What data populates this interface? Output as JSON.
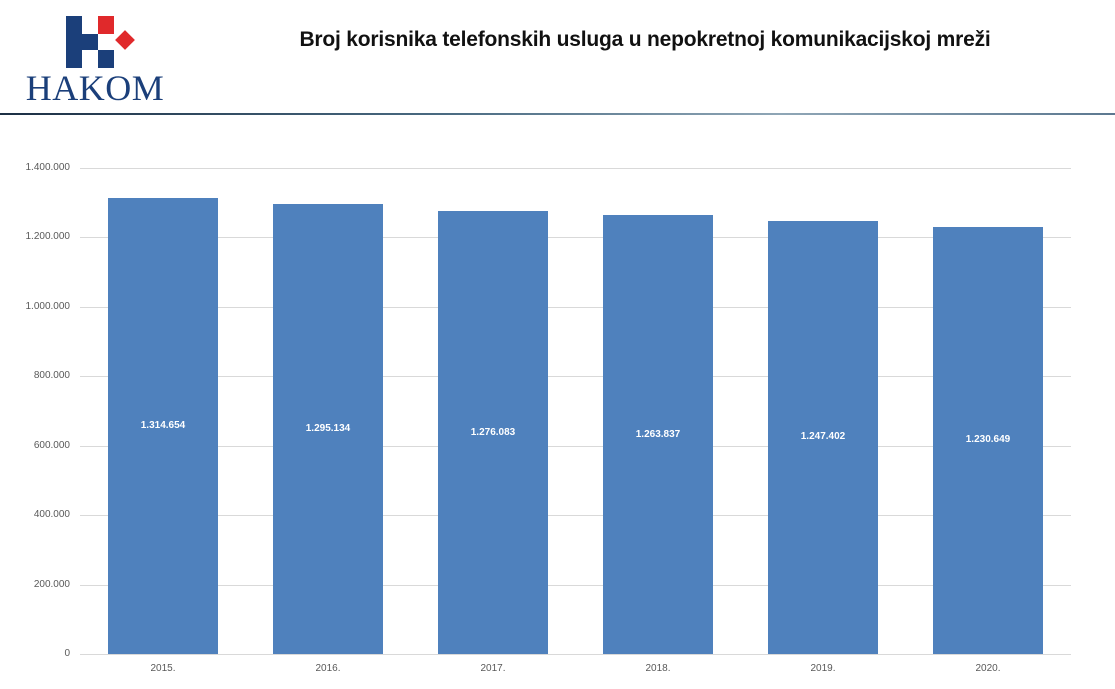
{
  "header": {
    "logo_text": "HAKOM",
    "title": "Broj korisnika telefonskih usluga u nepokretnoj komunikacijskoj mreži"
  },
  "colors": {
    "bar": "#4f81bd",
    "logo_blue": "#1b3f7a",
    "logo_red": "#e0292b",
    "grid": "#d9d9d9"
  },
  "chart_data": {
    "type": "bar",
    "title": "Broj korisnika telefonskih usluga u nepokretnoj komunikacijskoj mreži",
    "xlabel": "",
    "ylabel": "",
    "categories": [
      "2015.",
      "2016.",
      "2017.",
      "2018.",
      "2019.",
      "2020."
    ],
    "values": [
      1314654,
      1295134,
      1276083,
      1263837,
      1247402,
      1230649
    ],
    "value_labels": [
      "1.314.654",
      "1.295.134",
      "1.276.083",
      "1.263.837",
      "1.247.402",
      "1.230.649"
    ],
    "ylim": [
      0,
      1400000
    ],
    "yticks": [
      0,
      200000,
      400000,
      600000,
      800000,
      1000000,
      1200000,
      1400000
    ],
    "ytick_labels": [
      "0",
      "200.000",
      "400.000",
      "600.000",
      "800.000",
      "1.000.000",
      "1.200.000",
      "1.400.000"
    ],
    "grid": true,
    "legend": "none",
    "data_labels_position": "center"
  }
}
